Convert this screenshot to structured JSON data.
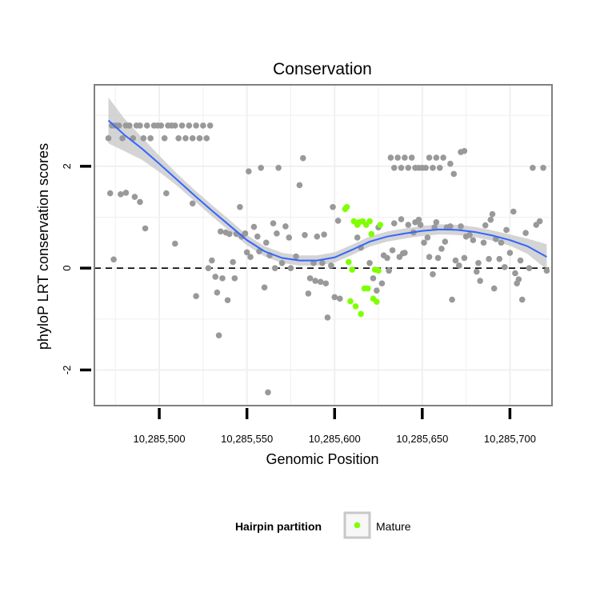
{
  "chart_data": {
    "type": "scatter",
    "title": "Conservation",
    "xlabel": "Genomic Position",
    "ylabel": "phyloP LRT conservation scores",
    "xlim": [
      10285463,
      10285724
    ],
    "ylim": [
      -2.7,
      3.6
    ],
    "x_ticks": [
      10285500,
      10285550,
      10285600,
      10285650,
      10285700
    ],
    "x_tick_labels": [
      "10,285,500",
      "10,285,550",
      "10,285,600",
      "10,285,650",
      "10,285,700"
    ],
    "y_ticks": [
      -2,
      0,
      2
    ],
    "y_tick_labels": [
      "-2",
      "0",
      "2"
    ],
    "grid": true,
    "reference_line": {
      "y": 0,
      "style": "dashed"
    },
    "colors": {
      "other": "#999999",
      "mature": "#7fff00",
      "smooth": "#3366ff",
      "ribbon": "#cccccc",
      "panel_border": "#808080",
      "grid": "#f0f0f0"
    },
    "legend": {
      "title": "Hairpin partition",
      "position": "bottom",
      "entries": [
        {
          "label": "Mature",
          "color": "#7fff00"
        }
      ]
    },
    "series": [
      {
        "name": "Other",
        "color": "#999999",
        "points": [
          [
            10285471,
            2.55
          ],
          [
            10285473,
            2.8
          ],
          [
            10285475,
            2.8
          ],
          [
            10285477,
            2.8
          ],
          [
            10285479,
            2.55
          ],
          [
            10285481,
            2.8
          ],
          [
            10285483,
            2.8
          ],
          [
            10285485,
            2.55
          ],
          [
            10285487,
            2.8
          ],
          [
            10285489,
            2.8
          ],
          [
            10285491,
            2.55
          ],
          [
            10285493,
            2.8
          ],
          [
            10285495,
            2.55
          ],
          [
            10285497,
            2.8
          ],
          [
            10285499,
            2.8
          ],
          [
            10285501,
            2.8
          ],
          [
            10285503,
            2.55
          ],
          [
            10285505,
            2.8
          ],
          [
            10285507,
            2.8
          ],
          [
            10285509,
            2.8
          ],
          [
            10285511,
            2.55
          ],
          [
            10285513,
            2.8
          ],
          [
            10285515,
            2.55
          ],
          [
            10285517,
            2.8
          ],
          [
            10285519,
            2.55
          ],
          [
            10285521,
            2.8
          ],
          [
            10285523,
            2.55
          ],
          [
            10285525,
            2.8
          ],
          [
            10285527,
            2.55
          ],
          [
            10285529,
            2.8
          ],
          [
            10285472,
            1.47
          ],
          [
            10285474,
            0.17
          ],
          [
            10285478,
            1.45
          ],
          [
            10285481,
            1.48
          ],
          [
            10285486,
            1.4
          ],
          [
            10285489,
            1.3
          ],
          [
            10285492,
            0.78
          ],
          [
            10285504,
            1.47
          ],
          [
            10285509,
            0.48
          ],
          [
            10285519,
            1.27
          ],
          [
            10285521,
            -0.55
          ],
          [
            10285528,
            0.0
          ],
          [
            10285530,
            0.15
          ],
          [
            10285532,
            -0.17
          ],
          [
            10285533,
            -0.48
          ],
          [
            10285534,
            -1.32
          ],
          [
            10285535,
            0.72
          ],
          [
            10285536,
            -0.2
          ],
          [
            10285538,
            0.7
          ],
          [
            10285539,
            -0.63
          ],
          [
            10285540,
            0.67
          ],
          [
            10285542,
            0.12
          ],
          [
            10285543,
            -0.2
          ],
          [
            10285544,
            0.67
          ],
          [
            10285546,
            1.2
          ],
          [
            10285547,
            0.62
          ],
          [
            10285549,
            0.68
          ],
          [
            10285550,
            0.31
          ],
          [
            10285551,
            1.9
          ],
          [
            10285552,
            0.22
          ],
          [
            10285554,
            0.81
          ],
          [
            10285556,
            0.62
          ],
          [
            10285557,
            0.33
          ],
          [
            10285558,
            1.97
          ],
          [
            10285560,
            -0.38
          ],
          [
            10285561,
            0.5
          ],
          [
            10285562,
            -2.44
          ],
          [
            10285563,
            0.25
          ],
          [
            10285565,
            0.88
          ],
          [
            10285566,
            0.0
          ],
          [
            10285567,
            0.68
          ],
          [
            10285568,
            1.97
          ],
          [
            10285570,
            0.1
          ],
          [
            10285572,
            0.82
          ],
          [
            10285574,
            0.6
          ],
          [
            10285575,
            0.0
          ],
          [
            10285578,
            0.23
          ],
          [
            10285580,
            1.63
          ],
          [
            10285582,
            2.16
          ],
          [
            10285583,
            0.65
          ],
          [
            10285585,
            -0.5
          ],
          [
            10285586,
            -0.2
          ],
          [
            10285588,
            0.1
          ],
          [
            10285589,
            -0.25
          ],
          [
            10285590,
            0.62
          ],
          [
            10285592,
            -0.27
          ],
          [
            10285593,
            0.1
          ],
          [
            10285594,
            0.66
          ],
          [
            10285595,
            -0.3
          ],
          [
            10285596,
            -0.97
          ],
          [
            10285598,
            0.05
          ],
          [
            10285599,
            1.2
          ],
          [
            10285600,
            -0.57
          ],
          [
            10285602,
            0.93
          ],
          [
            10285603,
            -0.6
          ],
          [
            10285613,
            0.6
          ],
          [
            10285615,
            0.4
          ],
          [
            10285620,
            0.1
          ],
          [
            10285622,
            -0.2
          ],
          [
            10285624,
            -0.44
          ],
          [
            10285625,
            0.8
          ],
          [
            10285627,
            -0.3
          ],
          [
            10285628,
            0.25
          ],
          [
            10285630,
            0.2
          ],
          [
            10285631,
            -0.05
          ],
          [
            10285633,
            0.35
          ],
          [
            10285634,
            0.88
          ],
          [
            10285637,
            0.22
          ],
          [
            10285638,
            0.96
          ],
          [
            10285639,
            0.29
          ],
          [
            10285640,
            0.3
          ],
          [
            10285642,
            0.85
          ],
          [
            10285645,
            0.7
          ],
          [
            10285646,
            0.9
          ],
          [
            10285648,
            0.95
          ],
          [
            10285649,
            0.85
          ],
          [
            10285651,
            0.5
          ],
          [
            10285653,
            0.6
          ],
          [
            10285654,
            0.22
          ],
          [
            10285656,
            -0.12
          ],
          [
            10285657,
            0.8
          ],
          [
            10285658,
            0.9
          ],
          [
            10285659,
            0.2
          ],
          [
            10285661,
            0.38
          ],
          [
            10285663,
            0.52
          ],
          [
            10285664,
            0.8
          ],
          [
            10285666,
            0.82
          ],
          [
            10285667,
            -0.62
          ],
          [
            10285669,
            0.15
          ],
          [
            10285671,
            0.05
          ],
          [
            10285672,
            0.82
          ],
          [
            10285674,
            0.2
          ],
          [
            10285675,
            0.62
          ],
          [
            10285677,
            0.65
          ],
          [
            10285679,
            0.55
          ],
          [
            10285681,
            -0.07
          ],
          [
            10285682,
            0.1
          ],
          [
            10285683,
            -0.25
          ],
          [
            10285685,
            0.5
          ],
          [
            10285686,
            0.84
          ],
          [
            10285688,
            0.18
          ],
          [
            10285689,
            0.95
          ],
          [
            10285690,
            1.06
          ],
          [
            10285691,
            -0.4
          ],
          [
            10285692,
            0.57
          ],
          [
            10285694,
            0.18
          ],
          [
            10285695,
            0.5
          ],
          [
            10285697,
            0.02
          ],
          [
            10285698,
            0.75
          ],
          [
            10285700,
            0.3
          ],
          [
            10285702,
            1.11
          ],
          [
            10285703,
            -0.1
          ],
          [
            10285704,
            -0.3
          ],
          [
            10285705,
            -0.22
          ],
          [
            10285706,
            0.15
          ],
          [
            10285707,
            -0.62
          ],
          [
            10285709,
            0.69
          ],
          [
            10285711,
            0.0
          ],
          [
            10285713,
            1.97
          ],
          [
            10285715,
            0.85
          ],
          [
            10285717,
            0.92
          ],
          [
            10285719,
            1.97
          ],
          [
            10285721,
            -0.05
          ],
          [
            10285632,
            2.17
          ],
          [
            10285634,
            1.97
          ],
          [
            10285636,
            2.17
          ],
          [
            10285638,
            1.97
          ],
          [
            10285640,
            2.17
          ],
          [
            10285642,
            1.97
          ],
          [
            10285644,
            2.17
          ],
          [
            10285646,
            1.97
          ],
          [
            10285648,
            1.97
          ],
          [
            10285650,
            1.97
          ],
          [
            10285652,
            1.97
          ],
          [
            10285654,
            2.17
          ],
          [
            10285656,
            1.97
          ],
          [
            10285658,
            2.17
          ],
          [
            10285660,
            1.97
          ],
          [
            10285662,
            2.17
          ],
          [
            10285666,
            2.05
          ],
          [
            10285668,
            1.85
          ],
          [
            10285672,
            2.28
          ],
          [
            10285674,
            2.3
          ]
        ]
      },
      {
        "name": "Mature",
        "color": "#7fff00",
        "points": [
          [
            10285606,
            1.16
          ],
          [
            10285607,
            1.2
          ],
          [
            10285608,
            0.12
          ],
          [
            10285609,
            -0.65
          ],
          [
            10285610,
            -0.03
          ],
          [
            10285611,
            0.92
          ],
          [
            10285612,
            -0.75
          ],
          [
            10285613,
            0.85
          ],
          [
            10285614,
            0.9
          ],
          [
            10285615,
            -0.9
          ],
          [
            10285616,
            0.92
          ],
          [
            10285617,
            -0.4
          ],
          [
            10285618,
            0.85
          ],
          [
            10285619,
            -0.4
          ],
          [
            10285620,
            0.92
          ],
          [
            10285621,
            0.67
          ],
          [
            10285622,
            -0.6
          ],
          [
            10285623,
            -0.03
          ],
          [
            10285624,
            -0.66
          ],
          [
            10285625,
            -0.05
          ],
          [
            10285626,
            0.85
          ]
        ]
      }
    ],
    "smooth": {
      "method": "loess",
      "x": [
        10285471,
        10285480,
        10285490,
        10285500,
        10285510,
        10285520,
        10285530,
        10285540,
        10285550,
        10285560,
        10285570,
        10285580,
        10285590,
        10285600,
        10285610,
        10285620,
        10285630,
        10285640,
        10285650,
        10285660,
        10285670,
        10285680,
        10285690,
        10285700,
        10285710,
        10285721
      ],
      "y": [
        2.9,
        2.62,
        2.35,
        2.05,
        1.74,
        1.43,
        1.13,
        0.84,
        0.55,
        0.33,
        0.2,
        0.15,
        0.15,
        0.21,
        0.36,
        0.52,
        0.62,
        0.68,
        0.73,
        0.76,
        0.75,
        0.71,
        0.64,
        0.55,
        0.43,
        0.22
      ],
      "se": [
        0.45,
        0.32,
        0.22,
        0.16,
        0.12,
        0.11,
        0.11,
        0.11,
        0.1,
        0.1,
        0.1,
        0.1,
        0.1,
        0.1,
        0.1,
        0.1,
        0.1,
        0.1,
        0.1,
        0.1,
        0.1,
        0.1,
        0.1,
        0.11,
        0.15,
        0.25
      ]
    }
  }
}
